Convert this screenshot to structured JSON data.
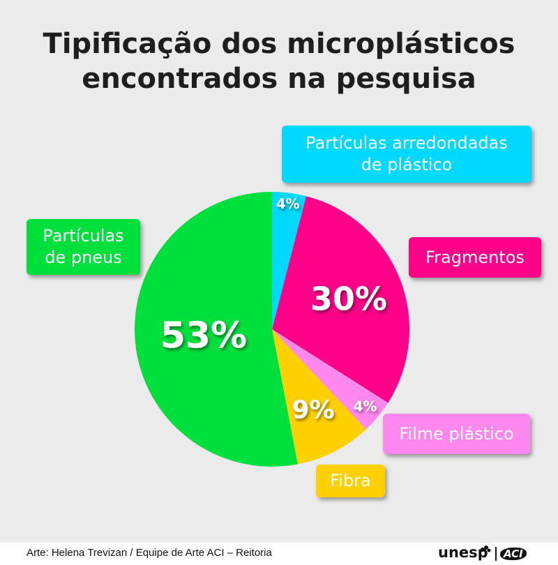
{
  "title_lines": [
    "Tipificação dos microplásticos",
    "encontrados na pesquisa"
  ],
  "chart_data": {
    "type": "pie",
    "title": "Tipificação dos microplásticos encontrados na pesquisa",
    "slices": [
      {
        "label_lines": [
          "Partículas arredondadas",
          "de plástico"
        ],
        "value": 4,
        "value_label": "4%",
        "color": "#00d9ff"
      },
      {
        "label_lines": [
          "Fragmentos"
        ],
        "value": 30,
        "value_label": "30%",
        "color": "#ff0088"
      },
      {
        "label_lines": [
          "Filme plástico"
        ],
        "value": 4,
        "value_label": "4%",
        "color": "#ff88ee"
      },
      {
        "label_lines": [
          "Fibra"
        ],
        "value": 9,
        "value_label": "9%",
        "color": "#ffd000"
      },
      {
        "label_lines": [
          "Partículas",
          "de pneus"
        ],
        "value": 53,
        "value_label": "53%",
        "color": "#00e03c"
      }
    ]
  },
  "footer": {
    "credit": "Arte: Helena Trevizan / Equipe de Arte ACI – Reitoria",
    "brand": "unesp",
    "brand_secondary": "ACI"
  }
}
